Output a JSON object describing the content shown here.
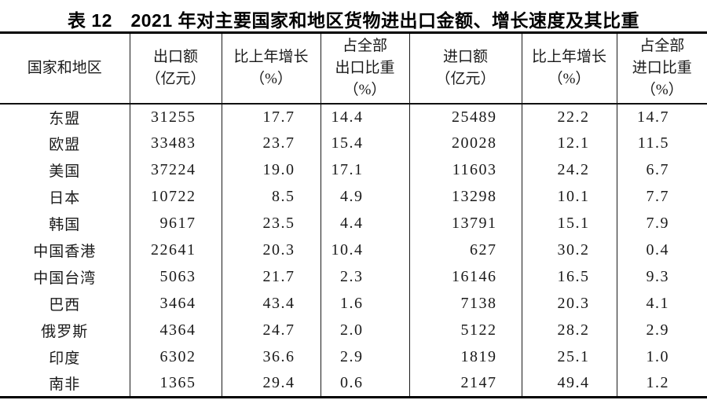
{
  "title": "表 12　2021 年对主要国家和地区货物进出口金额、增长速度及其比重",
  "table": {
    "columns": [
      "国家和地区",
      "出口额\n（亿元）",
      "比上年增长\n（%）",
      "占全部\n出口比重\n（%）",
      "进口额\n（亿元）",
      "比上年增长\n（%）",
      "占全部\n进口比重\n（%）"
    ],
    "rows": [
      {
        "region": "东盟",
        "values": [
          "31255",
          "17.7",
          "14.4",
          "25489",
          "22.2",
          "14.7"
        ]
      },
      {
        "region": "欧盟",
        "values": [
          "33483",
          "23.7",
          "15.4",
          "20028",
          "12.1",
          "11.5"
        ]
      },
      {
        "region": "美国",
        "values": [
          "37224",
          "19.0",
          "17.1",
          "11603",
          "24.2",
          "6.7"
        ]
      },
      {
        "region": "日本",
        "values": [
          "10722",
          "8.5",
          "4.9",
          "13298",
          "10.1",
          "7.7"
        ]
      },
      {
        "region": "韩国",
        "values": [
          "9617",
          "23.5",
          "4.4",
          "13791",
          "15.1",
          "7.9"
        ]
      },
      {
        "region": "中国香港",
        "values": [
          "22641",
          "20.3",
          "10.4",
          "627",
          "30.2",
          "0.4"
        ]
      },
      {
        "region": "中国台湾",
        "values": [
          "5063",
          "21.7",
          "2.3",
          "16146",
          "16.5",
          "9.3"
        ]
      },
      {
        "region": "巴西",
        "values": [
          "3464",
          "43.4",
          "1.6",
          "7138",
          "20.3",
          "4.1"
        ]
      },
      {
        "region": "俄罗斯",
        "values": [
          "4364",
          "24.7",
          "2.0",
          "5122",
          "28.2",
          "2.9"
        ]
      },
      {
        "region": "印度",
        "values": [
          "6302",
          "36.6",
          "2.9",
          "1819",
          "25.1",
          "1.0"
        ]
      },
      {
        "region": "南非",
        "values": [
          "1365",
          "29.4",
          "0.6",
          "2147",
          "49.4",
          "1.2"
        ]
      }
    ]
  },
  "colors": {
    "background": "#ffffff",
    "text": "#1a1a1a",
    "border": "#000000"
  },
  "chart_data": {
    "type": "table",
    "title": "表 12　2021 年对主要国家和地区货物进出口金额、增长速度及其比重",
    "columns": [
      "国家和地区",
      "出口额（亿元）",
      "比上年增长（%）",
      "占全部出口比重（%）",
      "进口额（亿元）",
      "比上年增长（%）",
      "占全部进口比重（%）"
    ],
    "rows": [
      [
        "东盟",
        31255,
        17.7,
        14.4,
        25489,
        22.2,
        14.7
      ],
      [
        "欧盟",
        33483,
        23.7,
        15.4,
        20028,
        12.1,
        11.5
      ],
      [
        "美国",
        37224,
        19.0,
        17.1,
        11603,
        24.2,
        6.7
      ],
      [
        "日本",
        10722,
        8.5,
        4.9,
        13298,
        10.1,
        7.7
      ],
      [
        "韩国",
        9617,
        23.5,
        4.4,
        13791,
        15.1,
        7.9
      ],
      [
        "中国香港",
        22641,
        20.3,
        10.4,
        627,
        30.2,
        0.4
      ],
      [
        "中国台湾",
        5063,
        21.7,
        2.3,
        16146,
        16.5,
        9.3
      ],
      [
        "巴西",
        3464,
        43.4,
        1.6,
        7138,
        20.3,
        4.1
      ],
      [
        "俄罗斯",
        4364,
        24.7,
        2.0,
        5122,
        28.2,
        2.9
      ],
      [
        "印度",
        6302,
        36.6,
        2.9,
        1819,
        25.1,
        1.0
      ],
      [
        "南非",
        1365,
        29.4,
        0.6,
        2147,
        49.4,
        1.2
      ]
    ]
  }
}
